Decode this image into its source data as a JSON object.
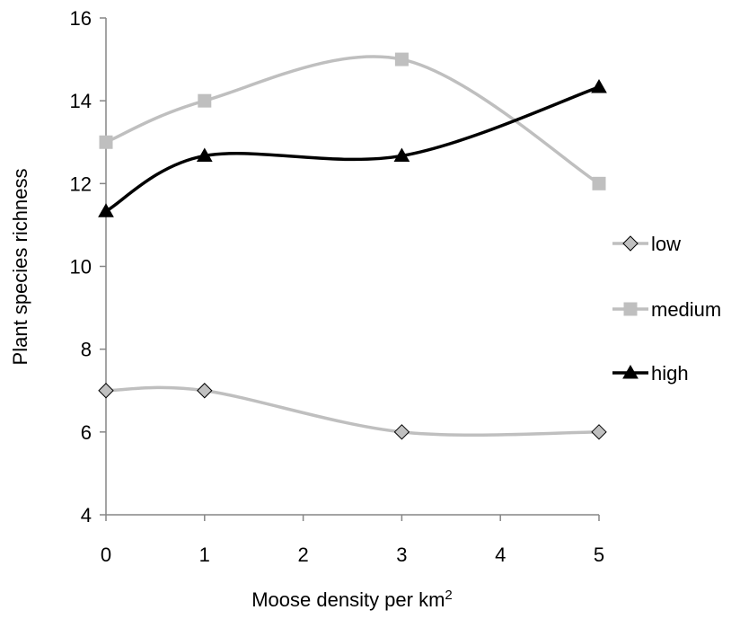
{
  "chart_data": {
    "type": "line",
    "smooth": true,
    "x": [
      0,
      1,
      3,
      5
    ],
    "series": [
      {
        "name": "low",
        "values": [
          7,
          7,
          6,
          6
        ],
        "color": "#bfbfbf",
        "marker": "diamond",
        "marker_fill": "#c0c0c0",
        "marker_stroke": "#000000"
      },
      {
        "name": "medium",
        "values": [
          13,
          14,
          15,
          12
        ],
        "color": "#bfbfbf",
        "marker": "square",
        "marker_fill": "#bfbfbf",
        "marker_stroke": "#bfbfbf"
      },
      {
        "name": "high",
        "values": [
          11.33,
          12.67,
          12.67,
          14.33
        ],
        "color": "#000000",
        "marker": "triangle",
        "marker_fill": "#000000",
        "marker_stroke": "#000000"
      }
    ],
    "xlabel": "Moose density per km",
    "xlabel_superscript": "2",
    "ylabel": "Plant species richness",
    "xlim": [
      0,
      5
    ],
    "ylim": [
      4,
      16
    ],
    "xticks": [
      0,
      1,
      2,
      3,
      4,
      5
    ],
    "yticks": [
      4,
      6,
      8,
      10,
      12,
      14,
      16
    ],
    "grid": false,
    "legend_position": "right"
  }
}
